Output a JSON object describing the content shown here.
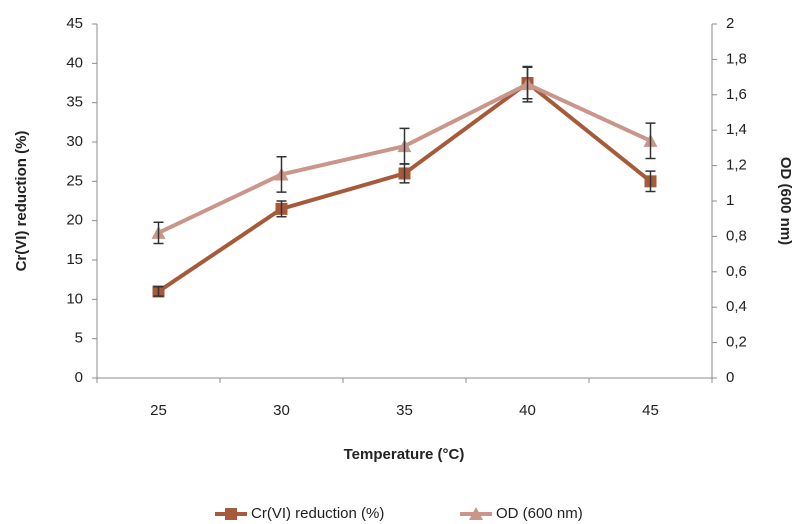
{
  "chart_data": {
    "type": "line",
    "x_label": "Temperature (°C)",
    "y_label": "Cr(VI) reduction (%)",
    "y2_label": "OD (600 nm)",
    "categories": [
      "25",
      "30",
      "35",
      "40",
      "45"
    ],
    "series": [
      {
        "name": "Cr(VI) reduction (%)",
        "color": "#a65a3a",
        "marker": "square",
        "axis": "y",
        "values": [
          11,
          21.5,
          26,
          37.5,
          25
        ],
        "errors": [
          0.6,
          1,
          1.2,
          2,
          1.3
        ]
      },
      {
        "name": "OD (600 nm)",
        "color": "#c9968a",
        "marker": "triangle",
        "axis": "y2",
        "values": [
          0.82,
          1.15,
          1.31,
          1.66,
          1.34
        ],
        "errors": [
          0.06,
          0.1,
          0.1,
          0.1,
          0.1
        ]
      }
    ],
    "ylim": [
      0,
      45
    ],
    "yticks": [
      0,
      5,
      10,
      15,
      20,
      25,
      30,
      35,
      40,
      45
    ],
    "y2lim": [
      0,
      2
    ],
    "y2ticks": [
      0,
      {
        "value": 0.2,
        "label": "0,2"
      },
      {
        "value": 0.4,
        "label": "0,4"
      },
      {
        "value": 0.6,
        "label": "0,6"
      },
      {
        "value": 0.8,
        "label": "0,8"
      },
      1,
      {
        "value": 1.2,
        "label": "1,2"
      },
      {
        "value": 1.4,
        "label": "1,4"
      },
      {
        "value": 1.6,
        "label": "1,6"
      },
      {
        "value": 1.8,
        "label": "1,8"
      },
      2
    ],
    "grid": false,
    "legend": "bottom"
  }
}
